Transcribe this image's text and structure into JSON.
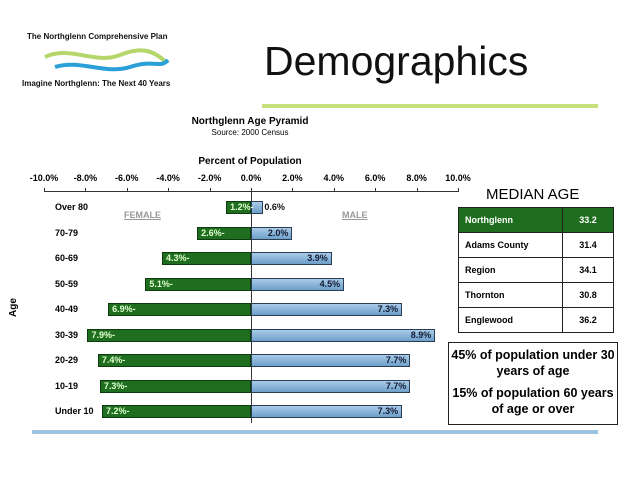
{
  "logo": {
    "top_text": "The Northglenn Comprehensive Plan",
    "bottom_text": "Imagine Northglenn: The Next 40 Years"
  },
  "title": "Demographics",
  "colors": {
    "female": "#1f6e1f",
    "male": "#7fb0d8",
    "accent_green": "#c6e07a",
    "accent_blue": "#9cc3e0"
  },
  "chart_data": {
    "type": "bar",
    "title": "Northglenn Age Pyramid",
    "subtitle": "Source: 2000 Census",
    "xlabel": "Percent of Population",
    "ylabel": "Age",
    "xlim": [
      -10,
      10
    ],
    "x_ticks": [
      "-10.0%",
      "-8.0%",
      "-6.0%",
      "-4.0%",
      "-2.0%",
      "0.0%",
      "2.0%",
      "4.0%",
      "6.0%",
      "8.0%",
      "10.0%"
    ],
    "legend": {
      "female": "FEMALE",
      "male": "MALE"
    },
    "categories": [
      "Over 80",
      "70-79",
      "60-69",
      "50-59",
      "40-49",
      "30-39",
      "20-29",
      "10-19",
      "Under 10"
    ],
    "series": [
      {
        "name": "FEMALE",
        "values": [
          1.2,
          2.6,
          4.3,
          5.1,
          6.9,
          7.9,
          7.4,
          7.3,
          7.2
        ],
        "labels": [
          "1.2%-",
          "2.6%-",
          "4.3%-",
          "5.1%-",
          "6.9%-",
          "7.9%-",
          "7.4%-",
          "7.3%-",
          "7.2%-"
        ]
      },
      {
        "name": "MALE",
        "values": [
          0.6,
          2.0,
          3.9,
          4.5,
          7.3,
          8.9,
          7.7,
          7.7,
          7.3
        ],
        "labels": [
          "0.6%",
          "2.0%",
          "3.9%",
          "4.5%",
          "7.3%",
          "8.9%",
          "7.7%",
          "7.7%",
          "7.3%"
        ]
      }
    ]
  },
  "median_age": {
    "title": "MEDIAN AGE",
    "rows": [
      {
        "name": "Northglenn",
        "value": "33.2"
      },
      {
        "name": "Adams County",
        "value": "31.4"
      },
      {
        "name": "Region",
        "value": "34.1"
      },
      {
        "name": "Thornton",
        "value": "30.8"
      },
      {
        "name": "Englewood",
        "value": "36.2"
      }
    ]
  },
  "facts": [
    "45% of population under 30 years of age",
    "15% of population 60 years of age or over"
  ]
}
